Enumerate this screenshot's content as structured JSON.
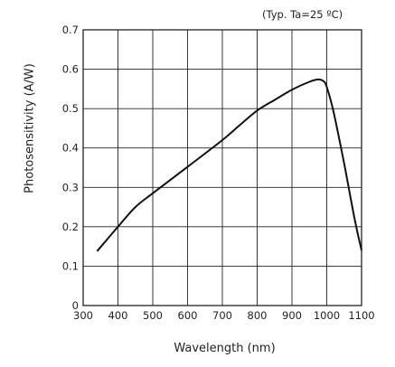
{
  "chart_data": {
    "type": "line",
    "title": "",
    "annotation": "(Typ. Ta=25 ºC)",
    "xlabel": "Wavelength (nm)",
    "ylabel": "Photosensitivity (A/W)",
    "xlim": [
      300,
      1100
    ],
    "ylim": [
      0,
      0.7
    ],
    "xticks": [
      "300",
      "400",
      "500",
      "600",
      "700",
      "800",
      "900",
      "1000",
      "1100"
    ],
    "yticks": [
      "0",
      "0.1",
      "0.2",
      "0.3",
      "0.4",
      "0.5",
      "0.6",
      "0.7"
    ],
    "grid": true,
    "series": [
      {
        "x": [
          340,
          400,
          450,
          500,
          600,
          700,
          750,
          800,
          850,
          900,
          950,
          975,
          990,
          1000,
          1020,
          1050,
          1080,
          1100
        ],
        "y": [
          0.138,
          0.2,
          0.25,
          0.285,
          0.352,
          0.42,
          0.458,
          0.495,
          0.522,
          0.548,
          0.568,
          0.574,
          0.57,
          0.555,
          0.49,
          0.36,
          0.22,
          0.14
        ]
      }
    ]
  }
}
